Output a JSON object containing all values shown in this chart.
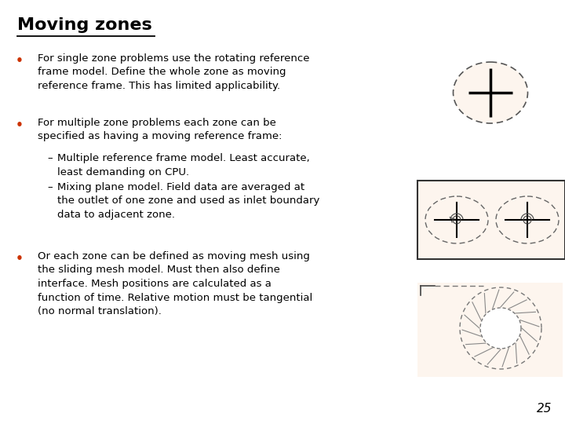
{
  "title": "Moving zones",
  "background_color": "#ffffff",
  "bullet1": "For single zone problems use the rotating reference\nframe model. Define the whole zone as moving\nreference frame. This has limited applicability.",
  "bullet2": "For multiple zone problems each zone can be\nspecified as having a moving reference frame:",
  "sub1": "Multiple reference frame model. Least accurate,\nleast demanding on CPU.",
  "sub2": "Mixing plane model. Field data are averaged at\nthe outlet of one zone and used as inlet boundary\ndata to adjacent zone.",
  "bullet3": "Or each zone can be defined as moving mesh using\nthe sliding mesh model. Must then also define\ninterface. Mesh positions are calculated as a\nfunction of time. Relative motion must be tangential\n(no normal translation).",
  "page_number": "25",
  "circle_bg": "#fdf5ee",
  "box_bg": "#fdf5ee",
  "bullet_color": "#cc3300"
}
